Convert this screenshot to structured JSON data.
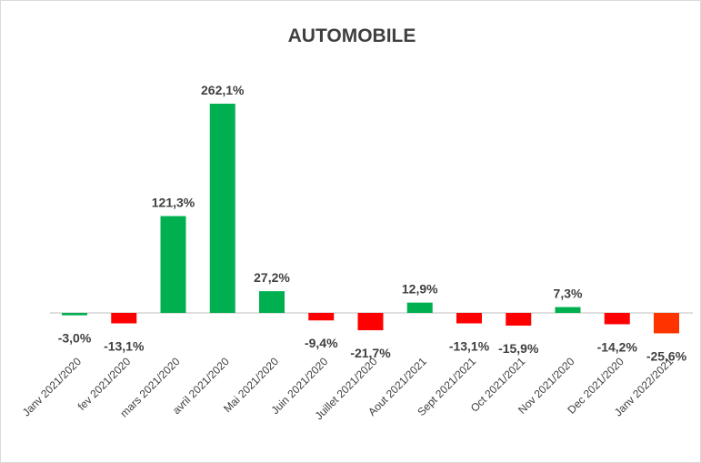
{
  "chart_data": {
    "type": "bar",
    "title": "AUTOMOBILE",
    "categories": [
      "Janv 2021/2020",
      "fev 2021/2020",
      "mars 2021/2020",
      "avril 2021/2020",
      "Mai 2021/2020",
      "Juin 2021/2020",
      "Juillet 2021/2020",
      "Aout 2021/2021",
      "Sept 2021/2021",
      "Oct 2021/2021",
      "Nov 2021/2020",
      "Dec 2021/2020",
      "Janv 2022/2021"
    ],
    "values": [
      -3.0,
      -13.1,
      121.3,
      262.1,
      27.2,
      -9.4,
      -21.7,
      12.9,
      -13.1,
      -15.9,
      7.3,
      -14.2,
      -25.6
    ],
    "value_labels": [
      "-3,0%",
      "-13,1%",
      "121,3%",
      "262,1%",
      "27,2%",
      "-9,4%",
      "-21,7%",
      "12,9%",
      "-13,1%",
      "-15,9%",
      "7,3%",
      "-14,2%",
      "-25,6%"
    ],
    "colors": [
      "#00b050",
      "#ff0000",
      "#00b050",
      "#00b050",
      "#00b050",
      "#ff0000",
      "#ff0000",
      "#00b050",
      "#ff0000",
      "#ff0000",
      "#00b050",
      "#ff0000",
      "#ff3300"
    ]
  }
}
